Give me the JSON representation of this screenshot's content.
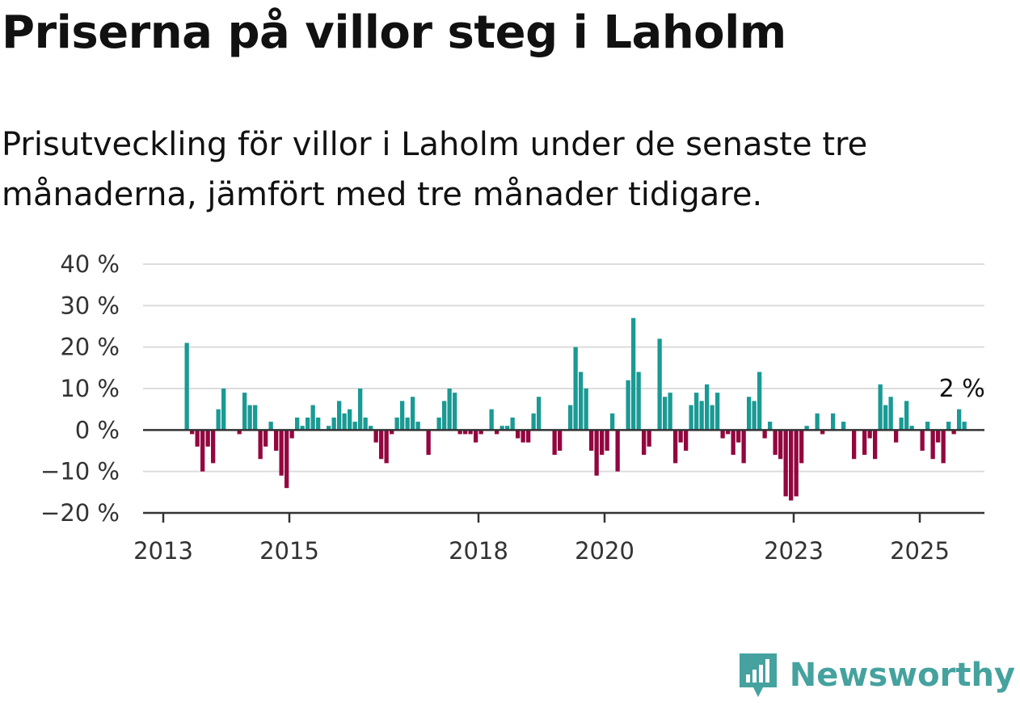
{
  "title": "Priserna på villor steg i Laholm",
  "subtitle": "Prisutveckling för villor i Laholm under de senaste tre månaderna, jämfört med tre månader tidigare.",
  "brand": {
    "name": "Newsworthy",
    "color": "#45a29e",
    "icon": "newsworthy-logo-icon"
  },
  "colors": {
    "positive": "#1a9a94",
    "negative": "#93063f",
    "grid": "#dcdcdc",
    "axis": "#333333"
  },
  "chart_data": {
    "type": "bar",
    "ylabel": "",
    "xlabel": "",
    "ylim": [
      -20,
      40
    ],
    "yticks": [
      -20,
      -10,
      0,
      10,
      20,
      30,
      40
    ],
    "ytick_labels": [
      "−20 %",
      "−10 %",
      "0 %",
      "10 %",
      "20 %",
      "30 %",
      "40 %"
    ],
    "xticks": [
      "2013",
      "2015",
      "2018",
      "2020",
      "2023",
      "2025"
    ],
    "grid": true,
    "start": "2013-01",
    "annotation": {
      "text": "2 %",
      "value": 2
    },
    "values": [
      0,
      0,
      0,
      0,
      21,
      -1,
      -4,
      -10,
      -4,
      -8,
      5,
      10,
      0,
      0,
      -1,
      9,
      6,
      6,
      -7,
      -4,
      2,
      -5,
      -11,
      -14,
      -2,
      3,
      1,
      3,
      6,
      3,
      0,
      1,
      3,
      7,
      4,
      5,
      2,
      10,
      3,
      1,
      -3,
      -7,
      -8,
      -1,
      3,
      7,
      3,
      8,
      2,
      0,
      -6,
      0,
      3,
      7,
      10,
      9,
      -1,
      -1,
      -1,
      -3,
      -1,
      0,
      5,
      -1,
      1,
      1,
      3,
      -2,
      -3,
      -3,
      4,
      8,
      0,
      0,
      -6,
      -5,
      0,
      6,
      20,
      14,
      10,
      -5,
      -11,
      -6,
      -5,
      4,
      -10,
      0,
      12,
      27,
      14,
      -6,
      -4,
      0,
      22,
      8,
      9,
      -8,
      -3,
      -5,
      6,
      9,
      7,
      11,
      6,
      9,
      -2,
      -1,
      -6,
      -3,
      -8,
      8,
      7,
      14,
      -2,
      2,
      -6,
      -7,
      -16,
      -17,
      -16,
      -8,
      1,
      0,
      4,
      -1,
      0,
      4,
      0,
      2,
      0,
      -7,
      0,
      -6,
      -2,
      -7,
      11,
      6,
      8,
      -3,
      3,
      7,
      1,
      0,
      -5,
      2,
      -7,
      -3,
      -8,
      2,
      -1,
      5,
      2
    ]
  }
}
